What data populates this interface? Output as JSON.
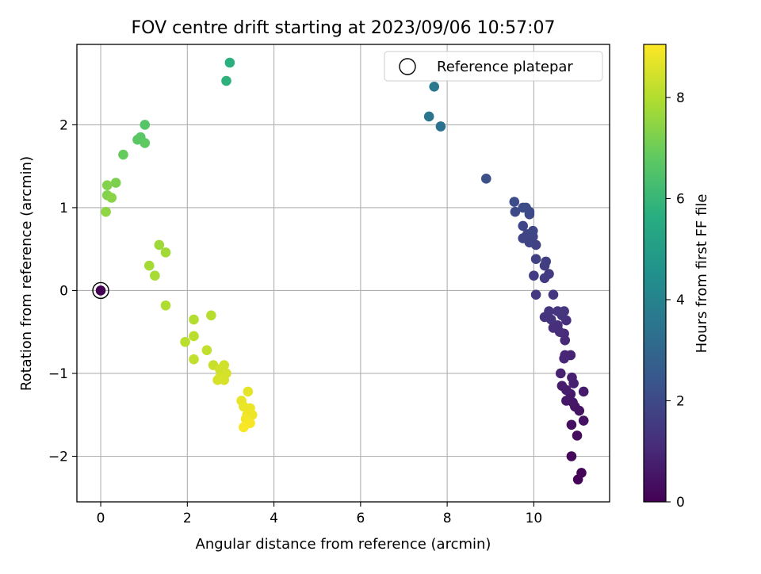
{
  "chart_data": {
    "type": "scatter",
    "title": "FOV centre drift starting at 2023/09/06 10:57:07",
    "xlabel": "Angular distance from reference (arcmin)",
    "ylabel": "Rotation from reference (arcmin)",
    "xlim": [
      -0.55,
      11.75
    ],
    "ylim": [
      -2.55,
      2.97
    ],
    "xticks": [
      0,
      2,
      4,
      6,
      8,
      10
    ],
    "yticks": [
      -2,
      -1,
      0,
      1,
      2
    ],
    "grid": true,
    "legend": {
      "location": "top-right",
      "entries": [
        "Reference platepar"
      ]
    },
    "colorbar": {
      "label": "Hours from first FF file",
      "colormap": "viridis",
      "range": [
        0,
        9.05
      ],
      "ticks": [
        0,
        2,
        4,
        6,
        8
      ]
    },
    "reference_point": {
      "x": 0,
      "y": 0,
      "hours": 0,
      "label": "Reference platepar"
    },
    "points": [
      {
        "x": 11.02,
        "y": -2.28,
        "hours": 0.05
      },
      {
        "x": 11.1,
        "y": -2.2,
        "hours": 0.1
      },
      {
        "x": 10.87,
        "y": -2.0,
        "hours": 0.2
      },
      {
        "x": 11.0,
        "y": -1.75,
        "hours": 0.3
      },
      {
        "x": 10.87,
        "y": -1.62,
        "hours": 0.35
      },
      {
        "x": 11.15,
        "y": -1.57,
        "hours": 0.4
      },
      {
        "x": 11.05,
        "y": -1.45,
        "hours": 0.45
      },
      {
        "x": 10.95,
        "y": -1.4,
        "hours": 0.5
      },
      {
        "x": 10.9,
        "y": -1.35,
        "hours": 0.55
      },
      {
        "x": 10.75,
        "y": -1.33,
        "hours": 0.6
      },
      {
        "x": 10.85,
        "y": -1.25,
        "hours": 0.6
      },
      {
        "x": 11.15,
        "y": -1.22,
        "hours": 0.65
      },
      {
        "x": 10.75,
        "y": -1.2,
        "hours": 0.7
      },
      {
        "x": 10.65,
        "y": -1.15,
        "hours": 0.75
      },
      {
        "x": 10.92,
        "y": -1.12,
        "hours": 0.8
      },
      {
        "x": 10.88,
        "y": -1.05,
        "hours": 0.8
      },
      {
        "x": 10.62,
        "y": -1.0,
        "hours": 0.85
      },
      {
        "x": 10.85,
        "y": -0.78,
        "hours": 0.9
      },
      {
        "x": 10.72,
        "y": -0.78,
        "hours": 0.95
      },
      {
        "x": 10.7,
        "y": -0.82,
        "hours": 1.0
      },
      {
        "x": 10.72,
        "y": -0.6,
        "hours": 1.05
      },
      {
        "x": 10.7,
        "y": -0.52,
        "hours": 1.1
      },
      {
        "x": 10.6,
        "y": -0.5,
        "hours": 1.15
      },
      {
        "x": 10.45,
        "y": -0.45,
        "hours": 1.2
      },
      {
        "x": 10.55,
        "y": -0.42,
        "hours": 1.2
      },
      {
        "x": 10.75,
        "y": -0.36,
        "hours": 1.25
      },
      {
        "x": 10.4,
        "y": -0.35,
        "hours": 1.3
      },
      {
        "x": 10.25,
        "y": -0.32,
        "hours": 1.3
      },
      {
        "x": 10.65,
        "y": -0.3,
        "hours": 1.35
      },
      {
        "x": 10.35,
        "y": -0.25,
        "hours": 1.35
      },
      {
        "x": 10.55,
        "y": -0.25,
        "hours": 1.4
      },
      {
        "x": 10.7,
        "y": -0.25,
        "hours": 1.4
      },
      {
        "x": 10.45,
        "y": -0.05,
        "hours": 1.45
      },
      {
        "x": 10.05,
        "y": -0.05,
        "hours": 1.5
      },
      {
        "x": 10.35,
        "y": 0.2,
        "hours": 1.55
      },
      {
        "x": 10.25,
        "y": 0.15,
        "hours": 1.55
      },
      {
        "x": 10.0,
        "y": 0.18,
        "hours": 1.6
      },
      {
        "x": 10.28,
        "y": 0.35,
        "hours": 1.65
      },
      {
        "x": 10.25,
        "y": 0.3,
        "hours": 1.65
      },
      {
        "x": 10.05,
        "y": 0.38,
        "hours": 1.7
      },
      {
        "x": 10.05,
        "y": 0.55,
        "hours": 1.75
      },
      {
        "x": 9.9,
        "y": 0.58,
        "hours": 1.8
      },
      {
        "x": 9.98,
        "y": 0.65,
        "hours": 1.8
      },
      {
        "x": 9.75,
        "y": 0.63,
        "hours": 1.85
      },
      {
        "x": 9.85,
        "y": 0.68,
        "hours": 1.85
      },
      {
        "x": 9.98,
        "y": 0.72,
        "hours": 1.9
      },
      {
        "x": 9.75,
        "y": 0.78,
        "hours": 1.9
      },
      {
        "x": 9.9,
        "y": 0.92,
        "hours": 1.95
      },
      {
        "x": 9.57,
        "y": 0.95,
        "hours": 2.0
      },
      {
        "x": 9.9,
        "y": 0.95,
        "hours": 2.0
      },
      {
        "x": 9.75,
        "y": 1.0,
        "hours": 2.05
      },
      {
        "x": 9.82,
        "y": 1.0,
        "hours": 2.05
      },
      {
        "x": 9.55,
        "y": 1.07,
        "hours": 2.1
      },
      {
        "x": 8.9,
        "y": 1.35,
        "hours": 2.2
      },
      {
        "x": 7.85,
        "y": 1.98,
        "hours": 3.4
      },
      {
        "x": 7.58,
        "y": 2.1,
        "hours": 3.5
      },
      {
        "x": 7.7,
        "y": 2.46,
        "hours": 3.6
      },
      {
        "x": 2.98,
        "y": 2.75,
        "hours": 5.7
      },
      {
        "x": 2.9,
        "y": 2.53,
        "hours": 5.8
      },
      {
        "x": 1.02,
        "y": 2.0,
        "hours": 6.6
      },
      {
        "x": 0.92,
        "y": 1.85,
        "hours": 6.7
      },
      {
        "x": 0.85,
        "y": 1.82,
        "hours": 6.7
      },
      {
        "x": 1.02,
        "y": 1.78,
        "hours": 6.8
      },
      {
        "x": 0.52,
        "y": 1.64,
        "hours": 6.9
      },
      {
        "x": 0.35,
        "y": 1.3,
        "hours": 7.2
      },
      {
        "x": 0.15,
        "y": 1.27,
        "hours": 7.3
      },
      {
        "x": 0.15,
        "y": 1.15,
        "hours": 7.3
      },
      {
        "x": 0.25,
        "y": 1.12,
        "hours": 7.4
      },
      {
        "x": 0.12,
        "y": 0.95,
        "hours": 7.5
      },
      {
        "x": 1.35,
        "y": 0.55,
        "hours": 7.7
      },
      {
        "x": 1.5,
        "y": 0.46,
        "hours": 7.75
      },
      {
        "x": 1.12,
        "y": 0.3,
        "hours": 7.8
      },
      {
        "x": 1.25,
        "y": 0.18,
        "hours": 7.85
      },
      {
        "x": 1.5,
        "y": -0.18,
        "hours": 7.95
      },
      {
        "x": 2.55,
        "y": -0.3,
        "hours": 8.05
      },
      {
        "x": 2.15,
        "y": -0.35,
        "hours": 8.0
      },
      {
        "x": 2.15,
        "y": -0.55,
        "hours": 8.1
      },
      {
        "x": 1.95,
        "y": -0.62,
        "hours": 8.1
      },
      {
        "x": 2.45,
        "y": -0.72,
        "hours": 8.2
      },
      {
        "x": 2.15,
        "y": -0.83,
        "hours": 8.2
      },
      {
        "x": 2.6,
        "y": -0.9,
        "hours": 8.3
      },
      {
        "x": 2.85,
        "y": -0.9,
        "hours": 8.4
      },
      {
        "x": 2.75,
        "y": -0.95,
        "hours": 8.4
      },
      {
        "x": 2.9,
        "y": -1.0,
        "hours": 8.45
      },
      {
        "x": 2.75,
        "y": -1.05,
        "hours": 8.5
      },
      {
        "x": 2.85,
        "y": -1.08,
        "hours": 8.5
      },
      {
        "x": 2.7,
        "y": -1.08,
        "hours": 8.5
      },
      {
        "x": 3.4,
        "y": -1.22,
        "hours": 8.7
      },
      {
        "x": 3.25,
        "y": -1.33,
        "hours": 8.75
      },
      {
        "x": 3.3,
        "y": -1.4,
        "hours": 8.8
      },
      {
        "x": 3.45,
        "y": -1.42,
        "hours": 8.8
      },
      {
        "x": 3.38,
        "y": -1.5,
        "hours": 8.85
      },
      {
        "x": 3.5,
        "y": -1.5,
        "hours": 8.85
      },
      {
        "x": 3.35,
        "y": -1.55,
        "hours": 8.9
      },
      {
        "x": 3.45,
        "y": -1.6,
        "hours": 8.95
      },
      {
        "x": 3.3,
        "y": -1.65,
        "hours": 9.0
      }
    ]
  }
}
